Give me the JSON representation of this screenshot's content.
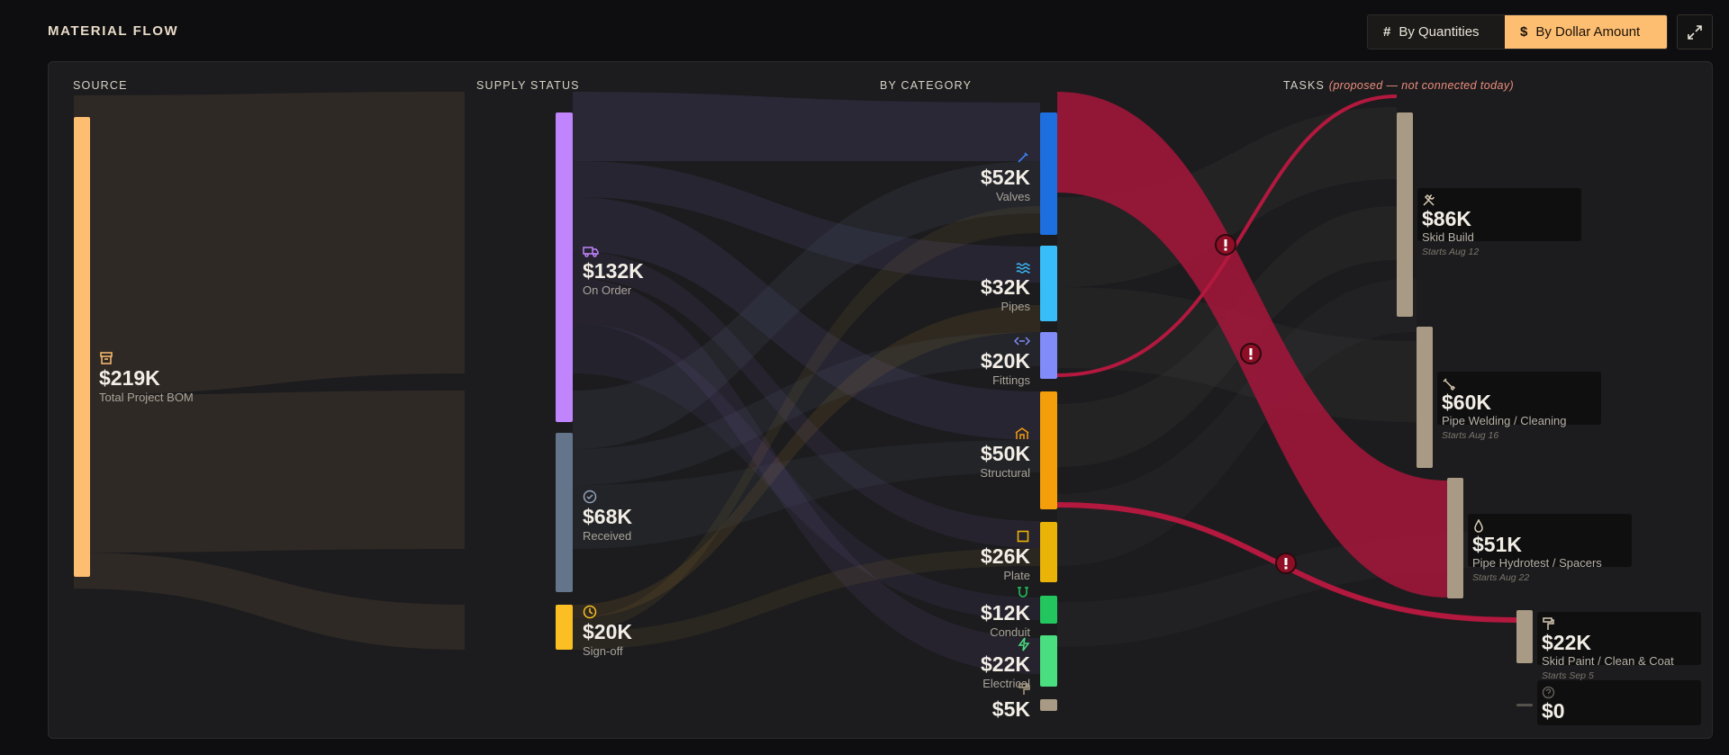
{
  "header": {
    "title": "MATERIAL FLOW",
    "mode_quantities_icon": "#",
    "mode_quantities_label": "By Quantities",
    "mode_dollar_icon": "$",
    "mode_dollar_label": "By Dollar Amount",
    "active_mode": "dollar",
    "expand_icon": "expand-arrows-icon"
  },
  "columns": {
    "source": "SOURCE",
    "supply_status": "SUPPLY STATUS",
    "by_category": "BY CATEGORY",
    "tasks": "TASKS",
    "tasks_note": "(proposed — not connected today)"
  },
  "source": {
    "value": "$219K",
    "name": "Total Project BOM",
    "icon": "archive-box-icon",
    "color": "#fdbe72"
  },
  "supply": [
    {
      "value": "$132K",
      "name": "On Order",
      "icon": "truck-icon",
      "color": "#c084fc"
    },
    {
      "value": "$68K",
      "name": "Received",
      "icon": "check-circle-icon",
      "color": "#64748b"
    },
    {
      "value": "$20K",
      "name": "Sign-off",
      "icon": "clock-icon",
      "color": "#fbbf24"
    }
  ],
  "categories": [
    {
      "value": "$52K",
      "name": "Valves",
      "icon": "valve-icon",
      "color": "#1d6fe0"
    },
    {
      "value": "$32K",
      "name": "Pipes",
      "icon": "waves-icon",
      "color": "#38bdf8"
    },
    {
      "value": "$20K",
      "name": "Fittings",
      "icon": "connector-icon",
      "color": "#818cf8"
    },
    {
      "value": "$50K",
      "name": "Structural",
      "icon": "beam-icon",
      "color": "#f59e0b"
    },
    {
      "value": "$26K",
      "name": "Plate",
      "icon": "square-icon",
      "color": "#eab308"
    },
    {
      "value": "$12K",
      "name": "Conduit",
      "icon": "cable-icon",
      "color": "#22c55e"
    },
    {
      "value": "$22K",
      "name": "Electrical",
      "icon": "lightning-icon",
      "color": "#4ade80"
    },
    {
      "value": "$5K",
      "name": "",
      "icon": "paint-roller-icon",
      "color": "#a89a84"
    }
  ],
  "tasks": [
    {
      "value": "$86K",
      "name": "Skid Build",
      "start": "Starts Aug 12",
      "icon": "hammer-wrench-icon"
    },
    {
      "value": "$60K",
      "name": "Pipe Welding / Cleaning",
      "start": "Starts Aug 16",
      "icon": "wrench-icon"
    },
    {
      "value": "$51K",
      "name": "Pipe Hydrotest / Spacers",
      "start": "Starts Aug 22",
      "icon": "droplet-icon"
    },
    {
      "value": "$22K",
      "name": "Skid Paint / Clean & Coat",
      "start": "Starts Sep 5",
      "icon": "paint-roller-icon"
    },
    {
      "value": "$0",
      "name": "",
      "start": "",
      "icon": "question-circle-icon"
    }
  ],
  "alerts": [
    {
      "icon": "alert-exclamation-icon"
    },
    {
      "icon": "alert-exclamation-icon"
    },
    {
      "icon": "alert-exclamation-icon"
    }
  ],
  "colors": {
    "background": "#0e0e10",
    "panel": "#1c1c1e",
    "accent": "#fdbe72",
    "alert_flow": "#a3163a",
    "task_bar": "#a89a84"
  }
}
